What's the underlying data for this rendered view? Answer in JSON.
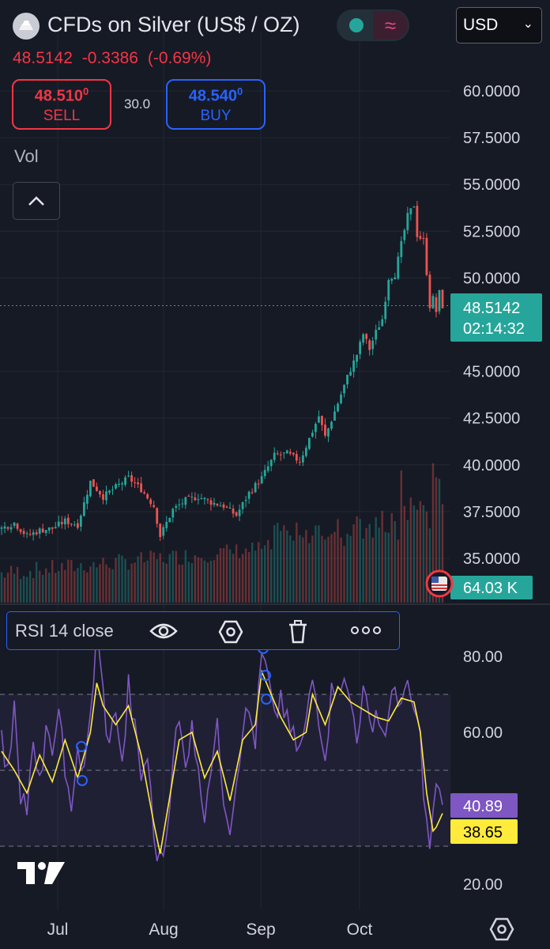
{
  "header": {
    "symbol_title": "CFDs on Silver (US$ / OZ)",
    "last_price": "48.5142",
    "change": "-0.3386",
    "change_pct": "(-0.69%)",
    "currency_selector": "USD"
  },
  "trade": {
    "sell_price": "48.510",
    "sell_price_sup": "0",
    "sell_label": "SELL",
    "spread": "30.0",
    "buy_price": "48.540",
    "buy_price_sup": "0",
    "buy_label": "BUY"
  },
  "volume_label": "Vol",
  "price_badge": {
    "price": "48.5142",
    "countdown": "02:14:32"
  },
  "volume_badge": "64.03 K",
  "rsi": {
    "legend": "RSI 14 close",
    "value": "40.89",
    "ma_value": "38.65"
  },
  "colors": {
    "up": "#26a69a",
    "down": "#ef5350",
    "rsi": "#7e57c2",
    "rsi_ma": "#ffeb3b",
    "accent": "#2962ff"
  },
  "chart_data": {
    "type": "candlestick",
    "symbol": "CFDs on Silver (US$ / OZ)",
    "x_ticks": [
      "Jul",
      "Aug",
      "Sep",
      "Oct"
    ],
    "price_axis": {
      "ticks": [
        "60.0000",
        "57.5000",
        "55.0000",
        "52.5000",
        "50.0000",
        "45.0000",
        "42.5000",
        "40.0000",
        "37.5000",
        "35.0000"
      ],
      "range": [
        33.8,
        62.2
      ]
    },
    "rsi_axis": {
      "ticks": [
        "80.00",
        "60.00",
        "20.00"
      ],
      "range": [
        16,
        94
      ],
      "bands": [
        70,
        50,
        30
      ]
    },
    "series": [
      {
        "name": "price_close_approx",
        "points": [
          [
            0,
            36.6
          ],
          [
            4,
            36.9
          ],
          [
            8,
            36.2
          ],
          [
            12,
            36.5
          ],
          [
            16,
            36.6
          ],
          [
            20,
            37.0
          ],
          [
            24,
            36.8
          ],
          [
            28,
            39.1
          ],
          [
            32,
            38.3
          ],
          [
            36,
            38.8
          ],
          [
            40,
            39.3
          ],
          [
            44,
            38.7
          ],
          [
            48,
            37.8
          ],
          [
            50,
            36.2
          ],
          [
            54,
            37.6
          ],
          [
            58,
            38.1
          ],
          [
            62,
            38.3
          ],
          [
            66,
            38.0
          ],
          [
            70,
            37.8
          ],
          [
            74,
            37.3
          ],
          [
            78,
            38.5
          ],
          [
            82,
            39.3
          ],
          [
            86,
            40.5
          ],
          [
            90,
            40.6
          ],
          [
            94,
            40.2
          ],
          [
            98,
            41.8
          ],
          [
            100,
            42.6
          ],
          [
            102,
            41.5
          ],
          [
            106,
            43.3
          ],
          [
            109,
            44.7
          ],
          [
            112,
            45.9
          ],
          [
            114,
            47.0
          ],
          [
            116,
            46.2
          ],
          [
            118,
            47.1
          ],
          [
            120,
            47.8
          ],
          [
            122,
            50.0
          ],
          [
            124,
            50.2
          ],
          [
            126,
            51.8
          ],
          [
            128,
            53.3
          ],
          [
            130,
            53.9
          ],
          [
            131,
            52.3
          ],
          [
            133,
            52.0
          ],
          [
            134,
            50.3
          ],
          [
            135,
            48.5
          ],
          [
            136,
            48.9
          ],
          [
            137,
            48.2
          ],
          [
            138,
            49.2
          ],
          [
            139,
            48.5
          ]
        ]
      },
      {
        "name": "RSI 14",
        "last": 40.89,
        "points": [
          [
            0,
            58
          ],
          [
            2,
            48
          ],
          [
            4,
            70
          ],
          [
            6,
            45
          ],
          [
            8,
            40
          ],
          [
            10,
            55
          ],
          [
            12,
            45
          ],
          [
            14,
            62
          ],
          [
            16,
            50
          ],
          [
            18,
            70
          ],
          [
            19,
            58
          ],
          [
            20,
            45
          ],
          [
            22,
            42
          ],
          [
            24,
            56
          ],
          [
            26,
            48
          ],
          [
            28,
            64
          ],
          [
            30,
            86
          ],
          [
            32,
            70
          ],
          [
            34,
            55
          ],
          [
            36,
            68
          ],
          [
            38,
            50
          ],
          [
            40,
            72
          ],
          [
            42,
            60
          ],
          [
            44,
            48
          ],
          [
            46,
            54
          ],
          [
            48,
            32
          ],
          [
            50,
            26
          ],
          [
            52,
            33
          ],
          [
            54,
            55
          ],
          [
            56,
            62
          ],
          [
            58,
            50
          ],
          [
            60,
            65
          ],
          [
            62,
            48
          ],
          [
            64,
            40
          ],
          [
            66,
            52
          ],
          [
            68,
            60
          ],
          [
            70,
            44
          ],
          [
            72,
            36
          ],
          [
            74,
            48
          ],
          [
            76,
            62
          ],
          [
            78,
            65
          ],
          [
            80,
            58
          ],
          [
            82,
            80
          ],
          [
            84,
            74
          ],
          [
            86,
            62
          ],
          [
            88,
            70
          ],
          [
            90,
            62
          ],
          [
            92,
            58
          ],
          [
            94,
            55
          ],
          [
            96,
            62
          ],
          [
            98,
            74
          ],
          [
            100,
            65
          ],
          [
            102,
            55
          ],
          [
            104,
            70
          ],
          [
            106,
            75
          ],
          [
            108,
            72
          ],
          [
            110,
            68
          ],
          [
            112,
            60
          ],
          [
            114,
            70
          ],
          [
            116,
            62
          ],
          [
            118,
            66
          ],
          [
            120,
            60
          ],
          [
            122,
            63
          ],
          [
            124,
            72
          ],
          [
            126,
            68
          ],
          [
            128,
            70
          ],
          [
            130,
            66
          ],
          [
            132,
            58
          ],
          [
            134,
            35
          ],
          [
            135,
            30
          ],
          [
            136,
            37
          ],
          [
            137,
            46
          ],
          [
            138,
            42
          ],
          [
            139,
            40.89
          ]
        ]
      },
      {
        "name": "RSI-based MA",
        "last": 38.65,
        "points": [
          [
            0,
            55
          ],
          [
            4,
            50
          ],
          [
            8,
            44
          ],
          [
            12,
            54
          ],
          [
            16,
            47
          ],
          [
            20,
            58
          ],
          [
            24,
            48
          ],
          [
            28,
            60
          ],
          [
            30,
            73
          ],
          [
            32,
            67
          ],
          [
            36,
            62
          ],
          [
            40,
            67
          ],
          [
            44,
            54
          ],
          [
            48,
            36
          ],
          [
            50,
            28
          ],
          [
            52,
            38
          ],
          [
            56,
            58
          ],
          [
            60,
            60
          ],
          [
            64,
            48
          ],
          [
            68,
            55
          ],
          [
            72,
            42
          ],
          [
            76,
            58
          ],
          [
            80,
            62
          ],
          [
            82,
            76
          ],
          [
            84,
            72
          ],
          [
            88,
            64
          ],
          [
            92,
            58
          ],
          [
            96,
            60
          ],
          [
            98,
            70
          ],
          [
            102,
            62
          ],
          [
            106,
            72
          ],
          [
            110,
            68
          ],
          [
            114,
            66
          ],
          [
            118,
            64
          ],
          [
            122,
            63
          ],
          [
            126,
            69
          ],
          [
            130,
            68
          ],
          [
            132,
            60
          ],
          [
            134,
            44
          ],
          [
            136,
            34
          ],
          [
            137,
            35
          ],
          [
            139,
            38.65
          ]
        ]
      }
    ]
  }
}
